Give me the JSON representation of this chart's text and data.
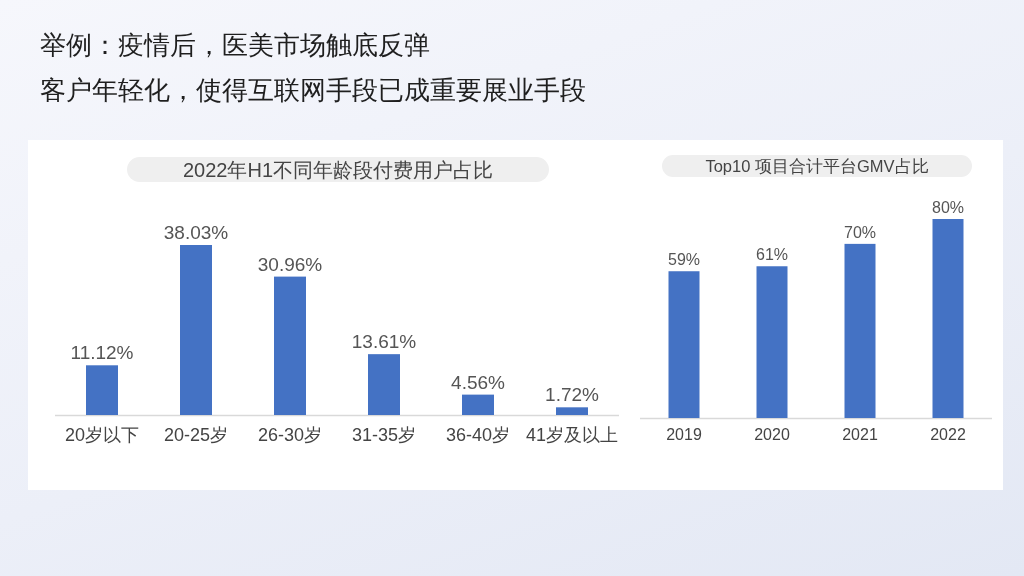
{
  "chart_data": [
    {
      "type": "other",
      "annotations": [
        "举例：疫情后，医美市场触底反弹",
        "客户年轻化，使得互联网手段已成重要展业手段"
      ]
    },
    {
      "type": "bar",
      "title": "2022年H1不同年龄段付费用户占比",
      "categories": [
        "20岁以下",
        "20-25岁",
        "26-30岁",
        "31-35岁",
        "36-40岁",
        "41岁及以上"
      ],
      "values": [
        11.12,
        38.03,
        30.96,
        13.61,
        4.56,
        1.72
      ],
      "value_labels": [
        "11.12%",
        "38.03%",
        "30.96%",
        "13.61%",
        "4.56%",
        "1.72%"
      ],
      "color": "#4472c4"
    },
    {
      "type": "bar",
      "title": "Top10 项目合计平台GMV占比",
      "categories": [
        "2019",
        "2020",
        "2021",
        "2022"
      ],
      "values": [
        59,
        61,
        70,
        80
      ],
      "value_labels": [
        "59%",
        "61%",
        "70%",
        "80%"
      ],
      "color": "#4472c4"
    }
  ]
}
